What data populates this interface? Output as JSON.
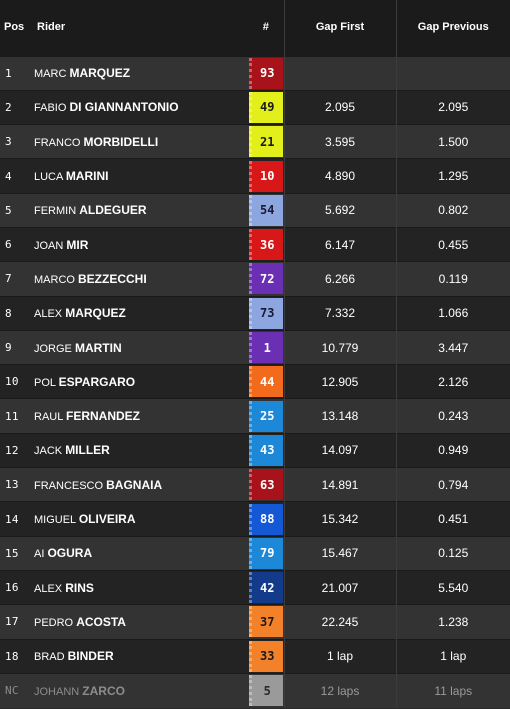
{
  "header": {
    "pos": "Pos",
    "rider": "Rider",
    "num": "#",
    "gap_first": "Gap First",
    "gap_previous": "Gap Previous"
  },
  "rows": [
    {
      "pos": "1",
      "first": "MARC",
      "last": "MARQUEZ",
      "num": "93",
      "bg": "#a8131b",
      "fg": "#ffffff",
      "gap_first": "",
      "gap_previous": ""
    },
    {
      "pos": "2",
      "first": "FABIO",
      "last": "DI GIANNANTONIO",
      "num": "49",
      "bg": "#e3ef1a",
      "fg": "#1a1a1a",
      "gap_first": "2.095",
      "gap_previous": "2.095"
    },
    {
      "pos": "3",
      "first": "FRANCO",
      "last": "MORBIDELLI",
      "num": "21",
      "bg": "#e3ef1a",
      "fg": "#1a1a1a",
      "gap_first": "3.595",
      "gap_previous": "1.500"
    },
    {
      "pos": "4",
      "first": "LUCA",
      "last": "MARINI",
      "num": "10",
      "bg": "#d81818",
      "fg": "#ffffff",
      "gap_first": "4.890",
      "gap_previous": "1.295"
    },
    {
      "pos": "5",
      "first": "FERMIN",
      "last": "ALDEGUER",
      "num": "54",
      "bg": "#8ea6e0",
      "fg": "#1a1a2e",
      "gap_first": "5.692",
      "gap_previous": "0.802"
    },
    {
      "pos": "6",
      "first": "JOAN",
      "last": "MIR",
      "num": "36",
      "bg": "#d81818",
      "fg": "#ffffff",
      "gap_first": "6.147",
      "gap_previous": "0.455"
    },
    {
      "pos": "7",
      "first": "MARCO",
      "last": "BEZZECCHI",
      "num": "72",
      "bg": "#6b2fb3",
      "fg": "#ffffff",
      "gap_first": "6.266",
      "gap_previous": "0.119"
    },
    {
      "pos": "8",
      "first": "ALEX",
      "last": "MARQUEZ",
      "num": "73",
      "bg": "#8ea6e0",
      "fg": "#1a1a2e",
      "gap_first": "7.332",
      "gap_previous": "1.066"
    },
    {
      "pos": "9",
      "first": "JORGE",
      "last": "MARTIN",
      "num": "1",
      "bg": "#6b2fb3",
      "fg": "#ffffff",
      "gap_first": "10.779",
      "gap_previous": "3.447"
    },
    {
      "pos": "10",
      "first": "POL",
      "last": "ESPARGARO",
      "num": "44",
      "bg": "#f26a1b",
      "fg": "#ffffff",
      "gap_first": "12.905",
      "gap_previous": "2.126"
    },
    {
      "pos": "11",
      "first": "RAUL",
      "last": "FERNANDEZ",
      "num": "25",
      "bg": "#1e88d8",
      "fg": "#ffffff",
      "gap_first": "13.148",
      "gap_previous": "0.243"
    },
    {
      "pos": "12",
      "first": "JACK",
      "last": "MILLER",
      "num": "43",
      "bg": "#1e88d8",
      "fg": "#ffffff",
      "gap_first": "14.097",
      "gap_previous": "0.949"
    },
    {
      "pos": "13",
      "first": "FRANCESCO",
      "last": "BAGNAIA",
      "num": "63",
      "bg": "#a8131b",
      "fg": "#ffffff",
      "gap_first": "14.891",
      "gap_previous": "0.794"
    },
    {
      "pos": "14",
      "first": "MIGUEL",
      "last": "OLIVEIRA",
      "num": "88",
      "bg": "#1458d6",
      "fg": "#ffffff",
      "gap_first": "15.342",
      "gap_previous": "0.451"
    },
    {
      "pos": "15",
      "first": "AI",
      "last": "OGURA",
      "num": "79",
      "bg": "#1e88d8",
      "fg": "#ffffff",
      "gap_first": "15.467",
      "gap_previous": "0.125"
    },
    {
      "pos": "16",
      "first": "ALEX",
      "last": "RINS",
      "num": "42",
      "bg": "#143a8c",
      "fg": "#ffffff",
      "gap_first": "21.007",
      "gap_previous": "5.540"
    },
    {
      "pos": "17",
      "first": "PEDRO",
      "last": "ACOSTA",
      "num": "37",
      "bg": "#f2812a",
      "fg": "#1a1a1a",
      "gap_first": "22.245",
      "gap_previous": "1.238"
    },
    {
      "pos": "18",
      "first": "BRAD",
      "last": "BINDER",
      "num": "33",
      "bg": "#f2812a",
      "fg": "#1a1a1a",
      "gap_first": "1 lap",
      "gap_previous": "1 lap"
    },
    {
      "pos": "NC",
      "first": "JOHANN",
      "last": "ZARCO",
      "num": "5",
      "bg": "#9a9a9a",
      "fg": "#2a2a2a",
      "gap_first": "12 laps",
      "gap_previous": "11 laps",
      "nc": true
    }
  ]
}
